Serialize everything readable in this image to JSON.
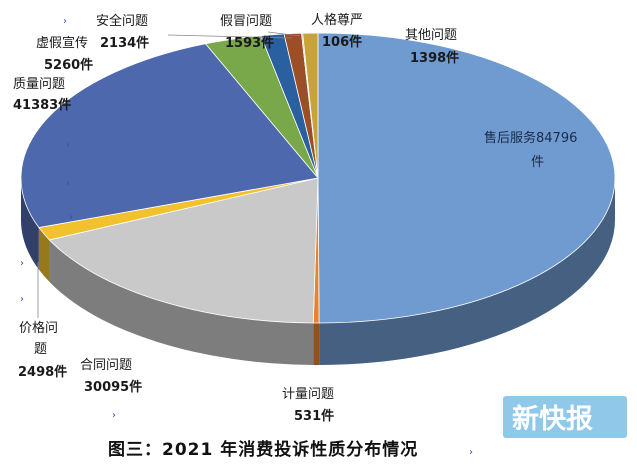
{
  "chart_data": {
    "type": "pie",
    "title": "",
    "caption": "图三：2021 年消费投诉性质分布情况",
    "slices": [
      {
        "name": "售后服务",
        "value": 84796,
        "unit": "件",
        "color": "#6f9bd0"
      },
      {
        "name": "计量问题",
        "value": 531,
        "unit": "件",
        "color": "#e8822e"
      },
      {
        "name": "合同问题",
        "value": 30095,
        "unit": "件",
        "color": "#c9c9c9"
      },
      {
        "name": "价格问题",
        "value": 2498,
        "unit": "件",
        "color": "#f2c12e"
      },
      {
        "name": "质量问题",
        "value": 41383,
        "unit": "件",
        "color": "#4e68ad"
      },
      {
        "name": "虚假宣传",
        "value": 5260,
        "unit": "件",
        "color": "#78a84a"
      },
      {
        "name": "安全问题",
        "value": 2134,
        "unit": "件",
        "color": "#2a5fa0"
      },
      {
        "name": "假冒问题",
        "value": 1593,
        "unit": "件",
        "color": "#9c4f26"
      },
      {
        "name": "人格尊严",
        "value": 106,
        "unit": "件",
        "color": "#7f7f7f"
      },
      {
        "name": "其他问题",
        "value": 1398,
        "unit": "件",
        "color": "#c8a33a"
      }
    ],
    "labels": {
      "shouhou_a": "售后服务84796",
      "shouhou_b": "件",
      "jiliang_a": "计量问题",
      "jiliang_b": "531件",
      "hetong_a": "合同问题",
      "hetong_b": "30095件",
      "jiage_a": "价格问",
      "jiage_b": "题",
      "jiage_c": "2498件",
      "zhiliang_a": "质量问题",
      "zhiliang_b": "41383件",
      "xujia_a": "虚假宣传",
      "xujia_b": "5260件",
      "anquan_a": "安全问题",
      "anquan_b": "2134件",
      "jiamao_a": "假冒问题",
      "jiamao_b": "1593件",
      "renge_a": "人格尊严",
      "renge_b": "106件",
      "qita_a": "其他问题",
      "qita_b": "1398件"
    },
    "legend": "none",
    "grid": false
  },
  "watermark": {
    "text": "新快报",
    "color": "#8fc8e8"
  }
}
